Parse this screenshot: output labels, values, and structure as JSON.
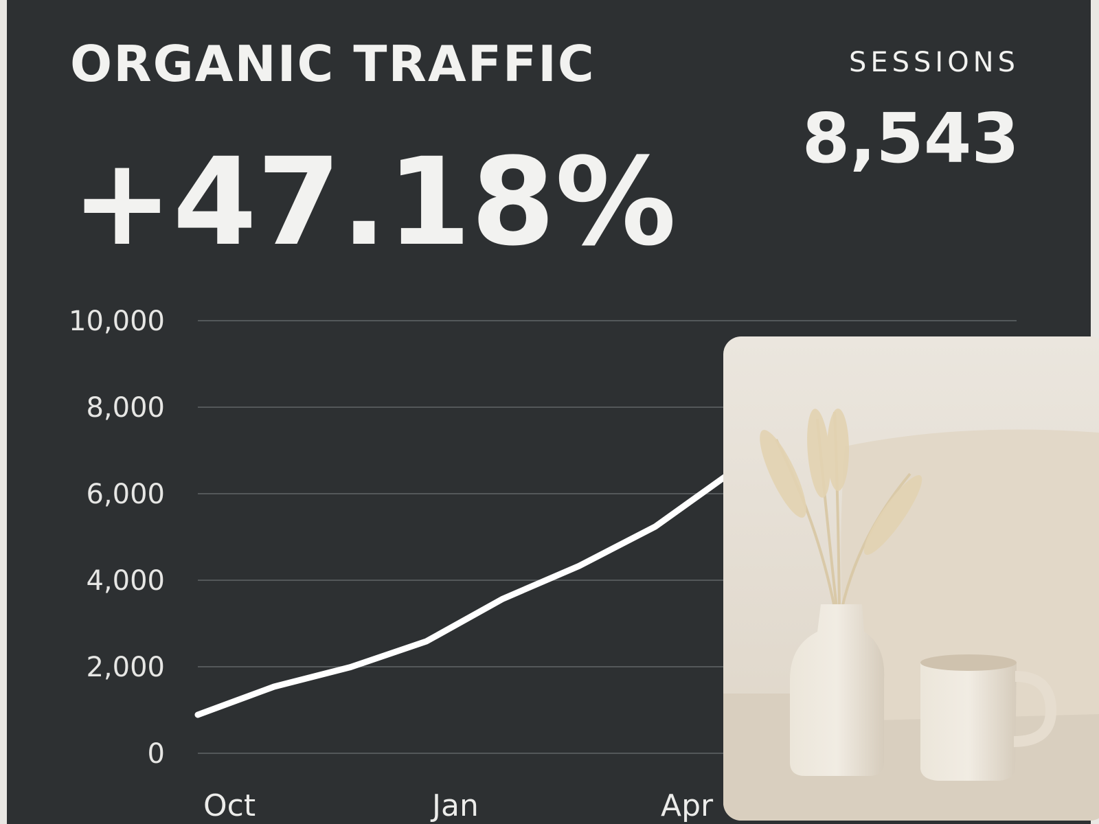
{
  "card": {
    "title": "ORGANIC TRAFFIC",
    "change": "+47.18%",
    "sessions_label": "SESSIONS",
    "sessions_value": "8,543"
  },
  "chart_data": {
    "type": "line",
    "categories": [
      "Oct",
      null,
      null,
      "Jan",
      null,
      null,
      "Apr",
      null
    ],
    "series": [
      {
        "name": "Organic traffic",
        "color": "#ffffff",
        "values": [
          890,
          1540,
          1990,
          2590,
          3570,
          4330,
          5240,
          6500
        ]
      }
    ],
    "ylim": [
      0,
      10000
    ],
    "yticks": [
      0,
      {
        "value": 2000,
        "label": "2,000"
      },
      {
        "value": 4000,
        "label": "4,000"
      },
      {
        "value": 6000,
        "label": "6,000"
      },
      {
        "value": 8000,
        "label": "8,000"
      },
      {
        "value": 10000,
        "label": "10,000"
      }
    ],
    "grid": true
  }
}
